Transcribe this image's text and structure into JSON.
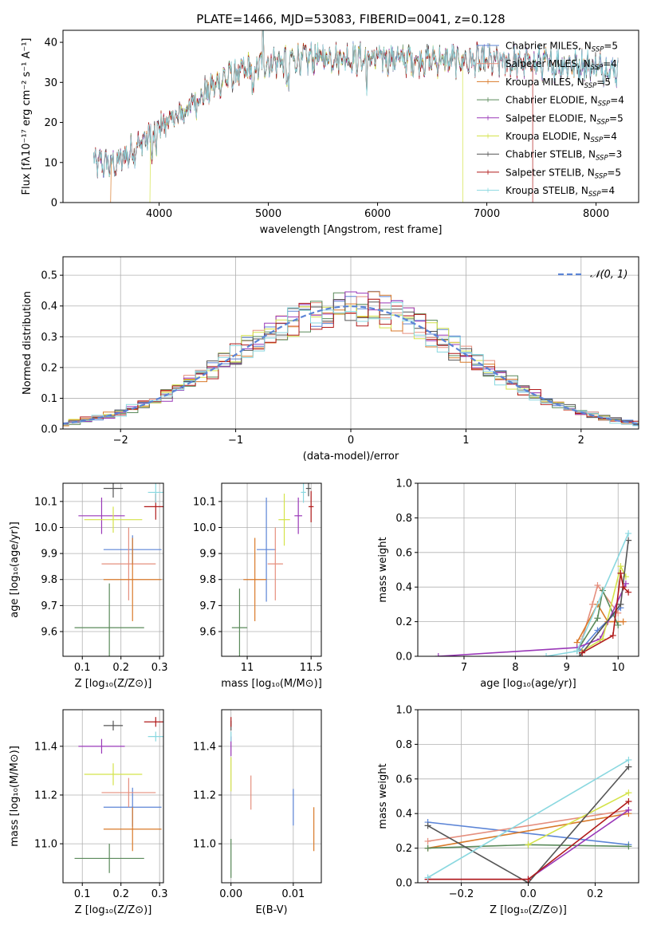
{
  "title": "PLATE=1466, MJD=53083, FIBERID=0041, z=0.128",
  "series": [
    {
      "name": "Chabrier MILES, N",
      "sub": "SSP",
      "suffix": "=5",
      "color": "#5b84d6"
    },
    {
      "name": "Salpeter MILES, N",
      "sub": "SSP",
      "suffix": "=4",
      "color": "#e58f7e"
    },
    {
      "name": "Kroupa MILES, N",
      "sub": "SSP",
      "suffix": "=5",
      "color": "#d97a2a"
    },
    {
      "name": "Chabrier ELODIE, N",
      "sub": "SSP",
      "suffix": "=4",
      "color": "#5a8a5a"
    },
    {
      "name": "Salpeter ELODIE, N",
      "sub": "SSP",
      "suffix": "=5",
      "color": "#9a38b8"
    },
    {
      "name": "Kroupa ELODIE, N",
      "sub": "SSP",
      "suffix": "=4",
      "color": "#d4e34a"
    },
    {
      "name": "Chabrier STELIB, N",
      "sub": "SSP",
      "suffix": "=3",
      "color": "#555555"
    },
    {
      "name": "Salpeter STELIB, N",
      "sub": "SSP",
      "suffix": "=5",
      "color": "#b01a1a"
    },
    {
      "name": "Kroupa STELIB, N",
      "sub": "SSP",
      "suffix": "=4",
      "color": "#8ad8e0"
    }
  ],
  "chart_data": [
    {
      "type": "line",
      "id": "spectrum",
      "xlabel": "wavelength [Angstrom, rest frame]",
      "ylabel": "Flux [fλ10⁻¹⁷ erg cm⁻² s⁻¹ A⁻¹]",
      "xlim": [
        3120,
        8390
      ],
      "ylim": [
        0,
        43
      ],
      "xticks": [
        4000,
        5000,
        6000,
        7000,
        8000
      ],
      "yticks": [
        0,
        10,
        20,
        30,
        40
      ],
      "continuum": {
        "x": [
          3400,
          3600,
          3800,
          4000,
          4200,
          4400,
          4600,
          4800,
          5000,
          5200,
          5400,
          5600,
          5800,
          6000,
          6200,
          6400,
          6600,
          6800,
          7000,
          7200,
          7400,
          7600,
          7800,
          8000,
          8200
        ],
        "y": [
          10,
          9.5,
          14,
          19,
          22,
          27,
          31,
          33,
          35,
          35.5,
          36,
          36.5,
          36,
          36,
          36,
          35.5,
          35.5,
          35.5,
          35,
          35,
          35,
          34.5,
          34.5,
          34,
          33
        ]
      },
      "dropouts": [
        {
          "series": 2,
          "x": 3560,
          "side": "start"
        },
        {
          "series": 5,
          "x": 3920,
          "side": "start"
        },
        {
          "series": 5,
          "x": 6780,
          "side": "end"
        },
        {
          "series": 7,
          "x": 7420,
          "side": "end"
        }
      ]
    },
    {
      "type": "histogram",
      "id": "residuals",
      "xlabel": "(data-model)/error",
      "ylabel": "Normed distribution",
      "xlim": [
        -2.5,
        2.5
      ],
      "ylim": [
        0,
        0.56
      ],
      "xticks": [
        -2,
        -1,
        0,
        1,
        2
      ],
      "yticks": [
        0,
        0.1,
        0.2,
        0.3,
        0.4,
        0.5
      ],
      "bin_width": 0.1,
      "reference": {
        "name": "𝒩(0, 1)",
        "color": "#5b84d6"
      }
    },
    {
      "type": "scatter",
      "id": "age_vs_Z",
      "xlabel": "Z [log₁₀(Z/Z⊙)]",
      "ylabel": "age  [log₁₀(age/yr)]",
      "xlim": [
        0.05,
        0.31
      ],
      "ylim": [
        9.505,
        10.17
      ],
      "xticks": [
        0.1,
        0.2,
        0.3
      ],
      "yticks": [
        9.6,
        9.7,
        9.8,
        9.9,
        10.0,
        10.1
      ],
      "points": [
        {
          "s": 0,
          "x": 0.23,
          "y": 9.915,
          "dx": 0.075,
          "dy": 0.055
        },
        {
          "s": 1,
          "x": 0.22,
          "y": 9.86,
          "dx": 0.07,
          "dy": 0.14
        },
        {
          "s": 2,
          "x": 0.23,
          "y": 9.8,
          "dx": 0.075,
          "dy": 0.16
        },
        {
          "s": 3,
          "x": 0.17,
          "y": 9.615,
          "dx": 0.09,
          "dy": 0.17
        },
        {
          "s": 4,
          "x": 0.15,
          "y": 10.045,
          "dx": 0.06,
          "dy": 0.07
        },
        {
          "s": 5,
          "x": 0.18,
          "y": 10.03,
          "dx": 0.075,
          "dy": 0.05
        },
        {
          "s": 6,
          "x": 0.18,
          "y": 10.15,
          "dx": 0.025,
          "dy": 0.035
        },
        {
          "s": 7,
          "x": 0.29,
          "y": 10.08,
          "dx": 0.03,
          "dy": 0.05
        },
        {
          "s": 8,
          "x": 0.29,
          "y": 10.135,
          "dx": 0.02,
          "dy": 0.04
        }
      ]
    },
    {
      "type": "scatter",
      "id": "age_vs_mass",
      "xlabel": "mass [log₁₀(M/M⊙)]",
      "ylabel": "",
      "xlim": [
        10.8,
        11.58
      ],
      "ylim": [
        9.505,
        10.17
      ],
      "xticks": [
        11.0,
        11.5
      ],
      "yticks": [
        9.6,
        9.7,
        9.8,
        9.9,
        10.0,
        10.1
      ],
      "points": [
        {
          "s": 0,
          "x": 11.15,
          "y": 9.915,
          "dx": 0.075,
          "dy": 0.2
        },
        {
          "s": 1,
          "x": 11.22,
          "y": 9.86,
          "dx": 0.06,
          "dy": 0.14
        },
        {
          "s": 2,
          "x": 11.06,
          "y": 9.8,
          "dx": 0.09,
          "dy": 0.16
        },
        {
          "s": 3,
          "x": 10.94,
          "y": 9.615,
          "dx": 0.06,
          "dy": 0.15
        },
        {
          "s": 4,
          "x": 11.4,
          "y": 10.045,
          "dx": 0.03,
          "dy": 0.07
        },
        {
          "s": 5,
          "x": 11.29,
          "y": 10.03,
          "dx": 0.045,
          "dy": 0.1
        },
        {
          "s": 6,
          "x": 11.48,
          "y": 10.15,
          "dx": 0.02,
          "dy": 0.03
        },
        {
          "s": 7,
          "x": 11.5,
          "y": 10.08,
          "dx": 0.02,
          "dy": 0.06
        },
        {
          "s": 8,
          "x": 11.44,
          "y": 10.135,
          "dx": 0.02,
          "dy": 0.04
        }
      ]
    },
    {
      "type": "line",
      "id": "massweight_vs_age",
      "xlabel": "age  [log₁₀(age/yr)]",
      "ylabel": "mass weight",
      "xlim": [
        6.1,
        10.4
      ],
      "ylim": [
        0,
        1.0
      ],
      "xticks": [
        7,
        8,
        9,
        10
      ],
      "yticks": [
        0.0,
        0.2,
        0.4,
        0.6,
        0.8,
        1.0
      ],
      "lines": [
        {
          "s": 0,
          "x": [
            9.25,
            9.6,
            9.95,
            10.05
          ],
          "y": [
            0.03,
            0.15,
            0.25,
            0.28
          ]
        },
        {
          "s": 1,
          "x": [
            9.3,
            9.5,
            9.6,
            10.0
          ],
          "y": [
            0.1,
            0.3,
            0.41,
            0.25
          ]
        },
        {
          "s": 2,
          "x": [
            9.2,
            9.6,
            9.8,
            10.1
          ],
          "y": [
            0.08,
            0.3,
            0.2,
            0.2
          ]
        },
        {
          "s": 3,
          "x": [
            9.2,
            9.6,
            9.7,
            10.0
          ],
          "y": [
            0.03,
            0.22,
            0.38,
            0.18
          ]
        },
        {
          "s": 4,
          "x": [
            6.5,
            9.2,
            9.65,
            10.15
          ],
          "y": [
            0.0,
            0.05,
            0.1,
            0.42
          ]
        },
        {
          "s": 5,
          "x": [
            9.3,
            9.7,
            10.05,
            10.15
          ],
          "y": [
            0.03,
            0.1,
            0.52,
            0.46
          ]
        },
        {
          "s": 6,
          "x": [
            9.25,
            10.05,
            10.2
          ],
          "y": [
            0.0,
            0.3,
            0.67
          ]
        },
        {
          "s": 7,
          "x": [
            9.3,
            9.9,
            10.05,
            10.1,
            10.2
          ],
          "y": [
            0.02,
            0.12,
            0.48,
            0.4,
            0.37
          ]
        },
        {
          "s": 8,
          "x": [
            8.6,
            9.2,
            10.2
          ],
          "y": [
            0.0,
            0.03,
            0.71
          ]
        }
      ]
    },
    {
      "type": "scatter",
      "id": "mass_vs_Z",
      "xlabel": "Z [log₁₀(Z/Z⊙)]",
      "ylabel": "mass [log₁₀(M/M⊙)]",
      "xlim": [
        0.05,
        0.31
      ],
      "ylim": [
        10.84,
        11.55
      ],
      "xticks": [
        0.1,
        0.2,
        0.3
      ],
      "yticks": [
        11.0,
        11.2,
        11.4
      ],
      "points": [
        {
          "s": 0,
          "x": 0.23,
          "y": 11.15,
          "dx": 0.075,
          "dy": 0.08
        },
        {
          "s": 1,
          "x": 0.22,
          "y": 11.21,
          "dx": 0.07,
          "dy": 0.06
        },
        {
          "s": 2,
          "x": 0.23,
          "y": 11.06,
          "dx": 0.075,
          "dy": 0.09
        },
        {
          "s": 3,
          "x": 0.17,
          "y": 10.94,
          "dx": 0.09,
          "dy": 0.06
        },
        {
          "s": 4,
          "x": 0.15,
          "y": 11.4,
          "dx": 0.06,
          "dy": 0.03
        },
        {
          "s": 5,
          "x": 0.18,
          "y": 11.285,
          "dx": 0.075,
          "dy": 0.045
        },
        {
          "s": 6,
          "x": 0.18,
          "y": 11.485,
          "dx": 0.025,
          "dy": 0.02
        },
        {
          "s": 7,
          "x": 0.29,
          "y": 11.5,
          "dx": 0.03,
          "dy": 0.02
        },
        {
          "s": 8,
          "x": 0.29,
          "y": 11.44,
          "dx": 0.02,
          "dy": 0.02
        }
      ]
    },
    {
      "type": "scatter",
      "id": "mass_vs_ebv",
      "xlabel": "E(B-V)",
      "ylabel": "",
      "xlim": [
        -0.0015,
        0.0145
      ],
      "ylim": [
        10.84,
        11.55
      ],
      "xticks": [
        0.0,
        0.01
      ],
      "xticklabels": [
        "0.00",
        "0.01"
      ],
      "yticks": [
        11.0,
        11.2,
        11.4
      ],
      "points": [
        {
          "s": 0,
          "x": 0.01,
          "y": 11.15,
          "dx": 0,
          "dy": 0.075
        },
        {
          "s": 1,
          "x": 0.0032,
          "y": 11.21,
          "dx": 0,
          "dy": 0.07
        },
        {
          "s": 2,
          "x": 0.0133,
          "y": 11.06,
          "dx": 0,
          "dy": 0.09
        },
        {
          "s": 3,
          "x": 0.0,
          "y": 10.94,
          "dx": 0,
          "dy": 0.08
        },
        {
          "s": 4,
          "x": 0.0,
          "y": 11.4,
          "dx": 0,
          "dy": 0.04
        },
        {
          "s": 5,
          "x": 0.0,
          "y": 11.285,
          "dx": 0,
          "dy": 0.07
        },
        {
          "s": 6,
          "x": 0.0,
          "y": 11.485,
          "dx": 0,
          "dy": 0.02
        },
        {
          "s": 7,
          "x": 0.0,
          "y": 11.5,
          "dx": 0,
          "dy": 0.02
        },
        {
          "s": 8,
          "x": 0.0,
          "y": 11.44,
          "dx": 0,
          "dy": 0.02
        }
      ]
    },
    {
      "type": "line",
      "id": "massweight_vs_Z",
      "xlabel": "Z [log₁₀(Z/Z⊙)]",
      "ylabel": "mass weight",
      "xlim": [
        -0.33,
        0.33
      ],
      "ylim": [
        0,
        1.0
      ],
      "xticks": [
        -0.2,
        0.0,
        0.2
      ],
      "xticklabels": [
        "−0.2",
        "0.0",
        "0.2"
      ],
      "yticks": [
        0.0,
        0.2,
        0.4,
        0.6,
        0.8,
        1.0
      ],
      "lines": [
        {
          "s": 0,
          "x": [
            -0.3,
            0.3
          ],
          "y": [
            0.35,
            0.22
          ]
        },
        {
          "s": 1,
          "x": [
            -0.3,
            0.3
          ],
          "y": [
            0.24,
            0.42
          ]
        },
        {
          "s": 2,
          "x": [
            -0.3,
            0.3
          ],
          "y": [
            0.2,
            0.4
          ]
        },
        {
          "s": 3,
          "x": [
            -0.3,
            0.0,
            0.3
          ],
          "y": [
            0.2,
            0.22,
            0.21
          ]
        },
        {
          "s": 4,
          "x": [
            -0.3,
            0.0,
            0.3
          ],
          "y": [
            0.02,
            0.02,
            0.42
          ]
        },
        {
          "s": 5,
          "x": [
            0.0,
            0.3
          ],
          "y": [
            0.22,
            0.52
          ]
        },
        {
          "s": 6,
          "x": [
            -0.3,
            0.0,
            0.3
          ],
          "y": [
            0.33,
            0.0,
            0.67
          ]
        },
        {
          "s": 7,
          "x": [
            -0.3,
            0.0,
            0.3
          ],
          "y": [
            0.02,
            0.02,
            0.47
          ]
        },
        {
          "s": 8,
          "x": [
            -0.3,
            0.3
          ],
          "y": [
            0.03,
            0.71
          ]
        }
      ]
    }
  ]
}
